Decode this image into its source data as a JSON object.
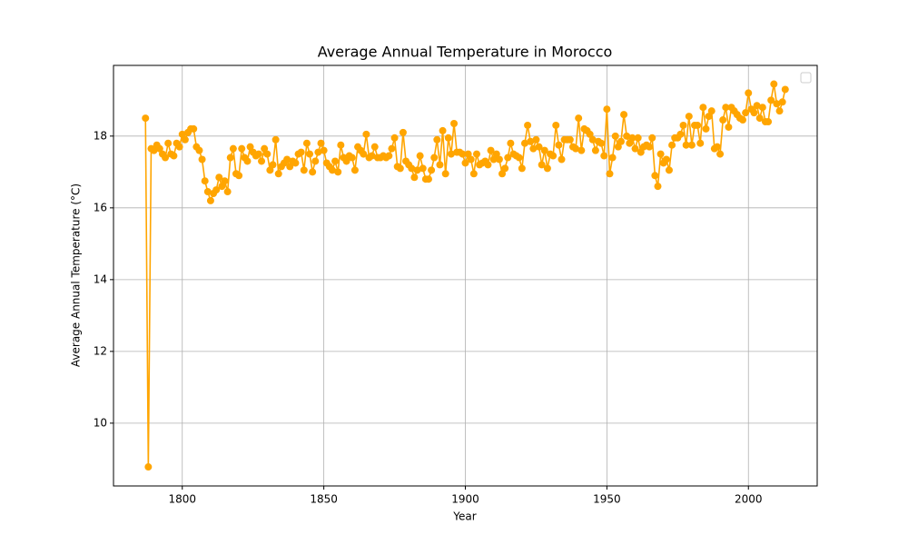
{
  "chart_data": {
    "type": "line",
    "title": "Average Annual Temperature in Morocco",
    "xlabel": "Year",
    "ylabel": "Average Annual Temperature (°C)",
    "x": [
      1787,
      1788,
      1789,
      1790,
      1791,
      1792,
      1793,
      1794,
      1795,
      1796,
      1797,
      1798,
      1799,
      1800,
      1801,
      1802,
      1803,
      1804,
      1805,
      1806,
      1807,
      1808,
      1809,
      1810,
      1811,
      1812,
      1813,
      1814,
      1815,
      1816,
      1817,
      1818,
      1819,
      1820,
      1821,
      1822,
      1823,
      1824,
      1825,
      1826,
      1827,
      1828,
      1829,
      1830,
      1831,
      1832,
      1833,
      1834,
      1835,
      1836,
      1837,
      1838,
      1839,
      1840,
      1841,
      1842,
      1843,
      1844,
      1845,
      1846,
      1847,
      1848,
      1849,
      1850,
      1851,
      1852,
      1853,
      1854,
      1855,
      1856,
      1857,
      1858,
      1859,
      1860,
      1861,
      1862,
      1863,
      1864,
      1865,
      1866,
      1867,
      1868,
      1869,
      1870,
      1871,
      1872,
      1873,
      1874,
      1875,
      1876,
      1877,
      1878,
      1879,
      1880,
      1881,
      1882,
      1883,
      1884,
      1885,
      1886,
      1887,
      1888,
      1889,
      1890,
      1891,
      1892,
      1893,
      1894,
      1895,
      1896,
      1897,
      1898,
      1899,
      1900,
      1901,
      1902,
      1903,
      1904,
      1905,
      1906,
      1907,
      1908,
      1909,
      1910,
      1911,
      1912,
      1913,
      1914,
      1915,
      1916,
      1917,
      1918,
      1919,
      1920,
      1921,
      1922,
      1923,
      1924,
      1925,
      1926,
      1927,
      1928,
      1929,
      1930,
      1931,
      1932,
      1933,
      1934,
      1935,
      1936,
      1937,
      1938,
      1939,
      1940,
      1941,
      1942,
      1943,
      1944,
      1945,
      1946,
      1947,
      1948,
      1949,
      1950,
      1951,
      1952,
      1953,
      1954,
      1955,
      1956,
      1957,
      1958,
      1959,
      1960,
      1961,
      1962,
      1963,
      1964,
      1965,
      1966,
      1967,
      1968,
      1969,
      1970,
      1971,
      1972,
      1973,
      1974,
      1975,
      1976,
      1977,
      1978,
      1979,
      1980,
      1981,
      1982,
      1983,
      1984,
      1985,
      1986,
      1987,
      1988,
      1989,
      1990,
      1991,
      1992,
      1993,
      1994,
      1995,
      1996,
      1997,
      1998,
      1999,
      2000,
      2001,
      2002,
      2003,
      2004,
      2005,
      2006,
      2007,
      2008,
      2009,
      2010,
      2011,
      2012,
      2013
    ],
    "series": [
      {
        "color": "#ffa500",
        "values": [
          18.5,
          8.78,
          17.65,
          17.6,
          17.75,
          17.65,
          17.5,
          17.4,
          17.8,
          17.5,
          17.45,
          17.8,
          17.7,
          18.05,
          17.9,
          18.1,
          18.2,
          18.2,
          17.7,
          17.6,
          17.35,
          16.75,
          16.45,
          16.2,
          16.4,
          16.5,
          16.85,
          16.6,
          16.75,
          16.45,
          17.4,
          17.65,
          16.95,
          16.9,
          17.65,
          17.4,
          17.3,
          17.7,
          17.55,
          17.45,
          17.5,
          17.3,
          17.65,
          17.5,
          17.05,
          17.2,
          17.9,
          16.95,
          17.15,
          17.25,
          17.35,
          17.15,
          17.3,
          17.25,
          17.5,
          17.55,
          17.05,
          17.8,
          17.5,
          17.0,
          17.3,
          17.55,
          17.8,
          17.6,
          17.25,
          17.15,
          17.05,
          17.3,
          17.0,
          17.75,
          17.4,
          17.3,
          17.45,
          17.4,
          17.05,
          17.7,
          17.6,
          17.5,
          18.05,
          17.4,
          17.45,
          17.7,
          17.4,
          17.4,
          17.45,
          17.4,
          17.45,
          17.65,
          17.95,
          17.15,
          17.1,
          18.1,
          17.3,
          17.2,
          17.1,
          16.85,
          17.05,
          17.45,
          17.1,
          16.8,
          16.8,
          17.05,
          17.4,
          17.9,
          17.2,
          18.15,
          16.95,
          17.95,
          17.5,
          18.35,
          17.55,
          17.55,
          17.5,
          17.25,
          17.5,
          17.35,
          16.95,
          17.5,
          17.2,
          17.25,
          17.3,
          17.2,
          17.6,
          17.35,
          17.5,
          17.35,
          16.95,
          17.1,
          17.4,
          17.8,
          17.5,
          17.45,
          17.4,
          17.1,
          17.8,
          18.3,
          17.85,
          17.65,
          17.9,
          17.7,
          17.2,
          17.6,
          17.1,
          17.5,
          17.45,
          18.3,
          17.75,
          17.35,
          17.9,
          17.9,
          17.9,
          17.7,
          17.65,
          18.5,
          17.6,
          18.2,
          18.15,
          18.05,
          17.9,
          17.6,
          17.85,
          17.8,
          17.45,
          18.75,
          16.95,
          17.4,
          18.0,
          17.7,
          17.85,
          18.6,
          18.0,
          17.8,
          17.95,
          17.65,
          17.95,
          17.55,
          17.7,
          17.75,
          17.7,
          17.95,
          16.9,
          16.6,
          17.5,
          17.25,
          17.35,
          17.05,
          17.75,
          17.95,
          17.95,
          18.05,
          18.3,
          17.75,
          18.55,
          17.75,
          18.3,
          18.3,
          17.8,
          18.8,
          18.2,
          18.55,
          18.7,
          17.65,
          17.7,
          17.5,
          18.45,
          18.8,
          18.25,
          18.8,
          18.7,
          18.6,
          18.5,
          18.45,
          18.65,
          19.2,
          18.75,
          18.65,
          18.85,
          18.5,
          18.8,
          18.4,
          18.4,
          19.0,
          19.45,
          18.9,
          18.7,
          18.95,
          19.3
        ]
      }
    ],
    "xlim": [
      1775.7,
      2024.3
    ],
    "ylim": [
      8.25,
      19.97
    ],
    "xticks": [
      1800,
      1850,
      1900,
      1950,
      2000
    ],
    "yticks": [
      10,
      12,
      14,
      16,
      18
    ],
    "grid": true
  }
}
